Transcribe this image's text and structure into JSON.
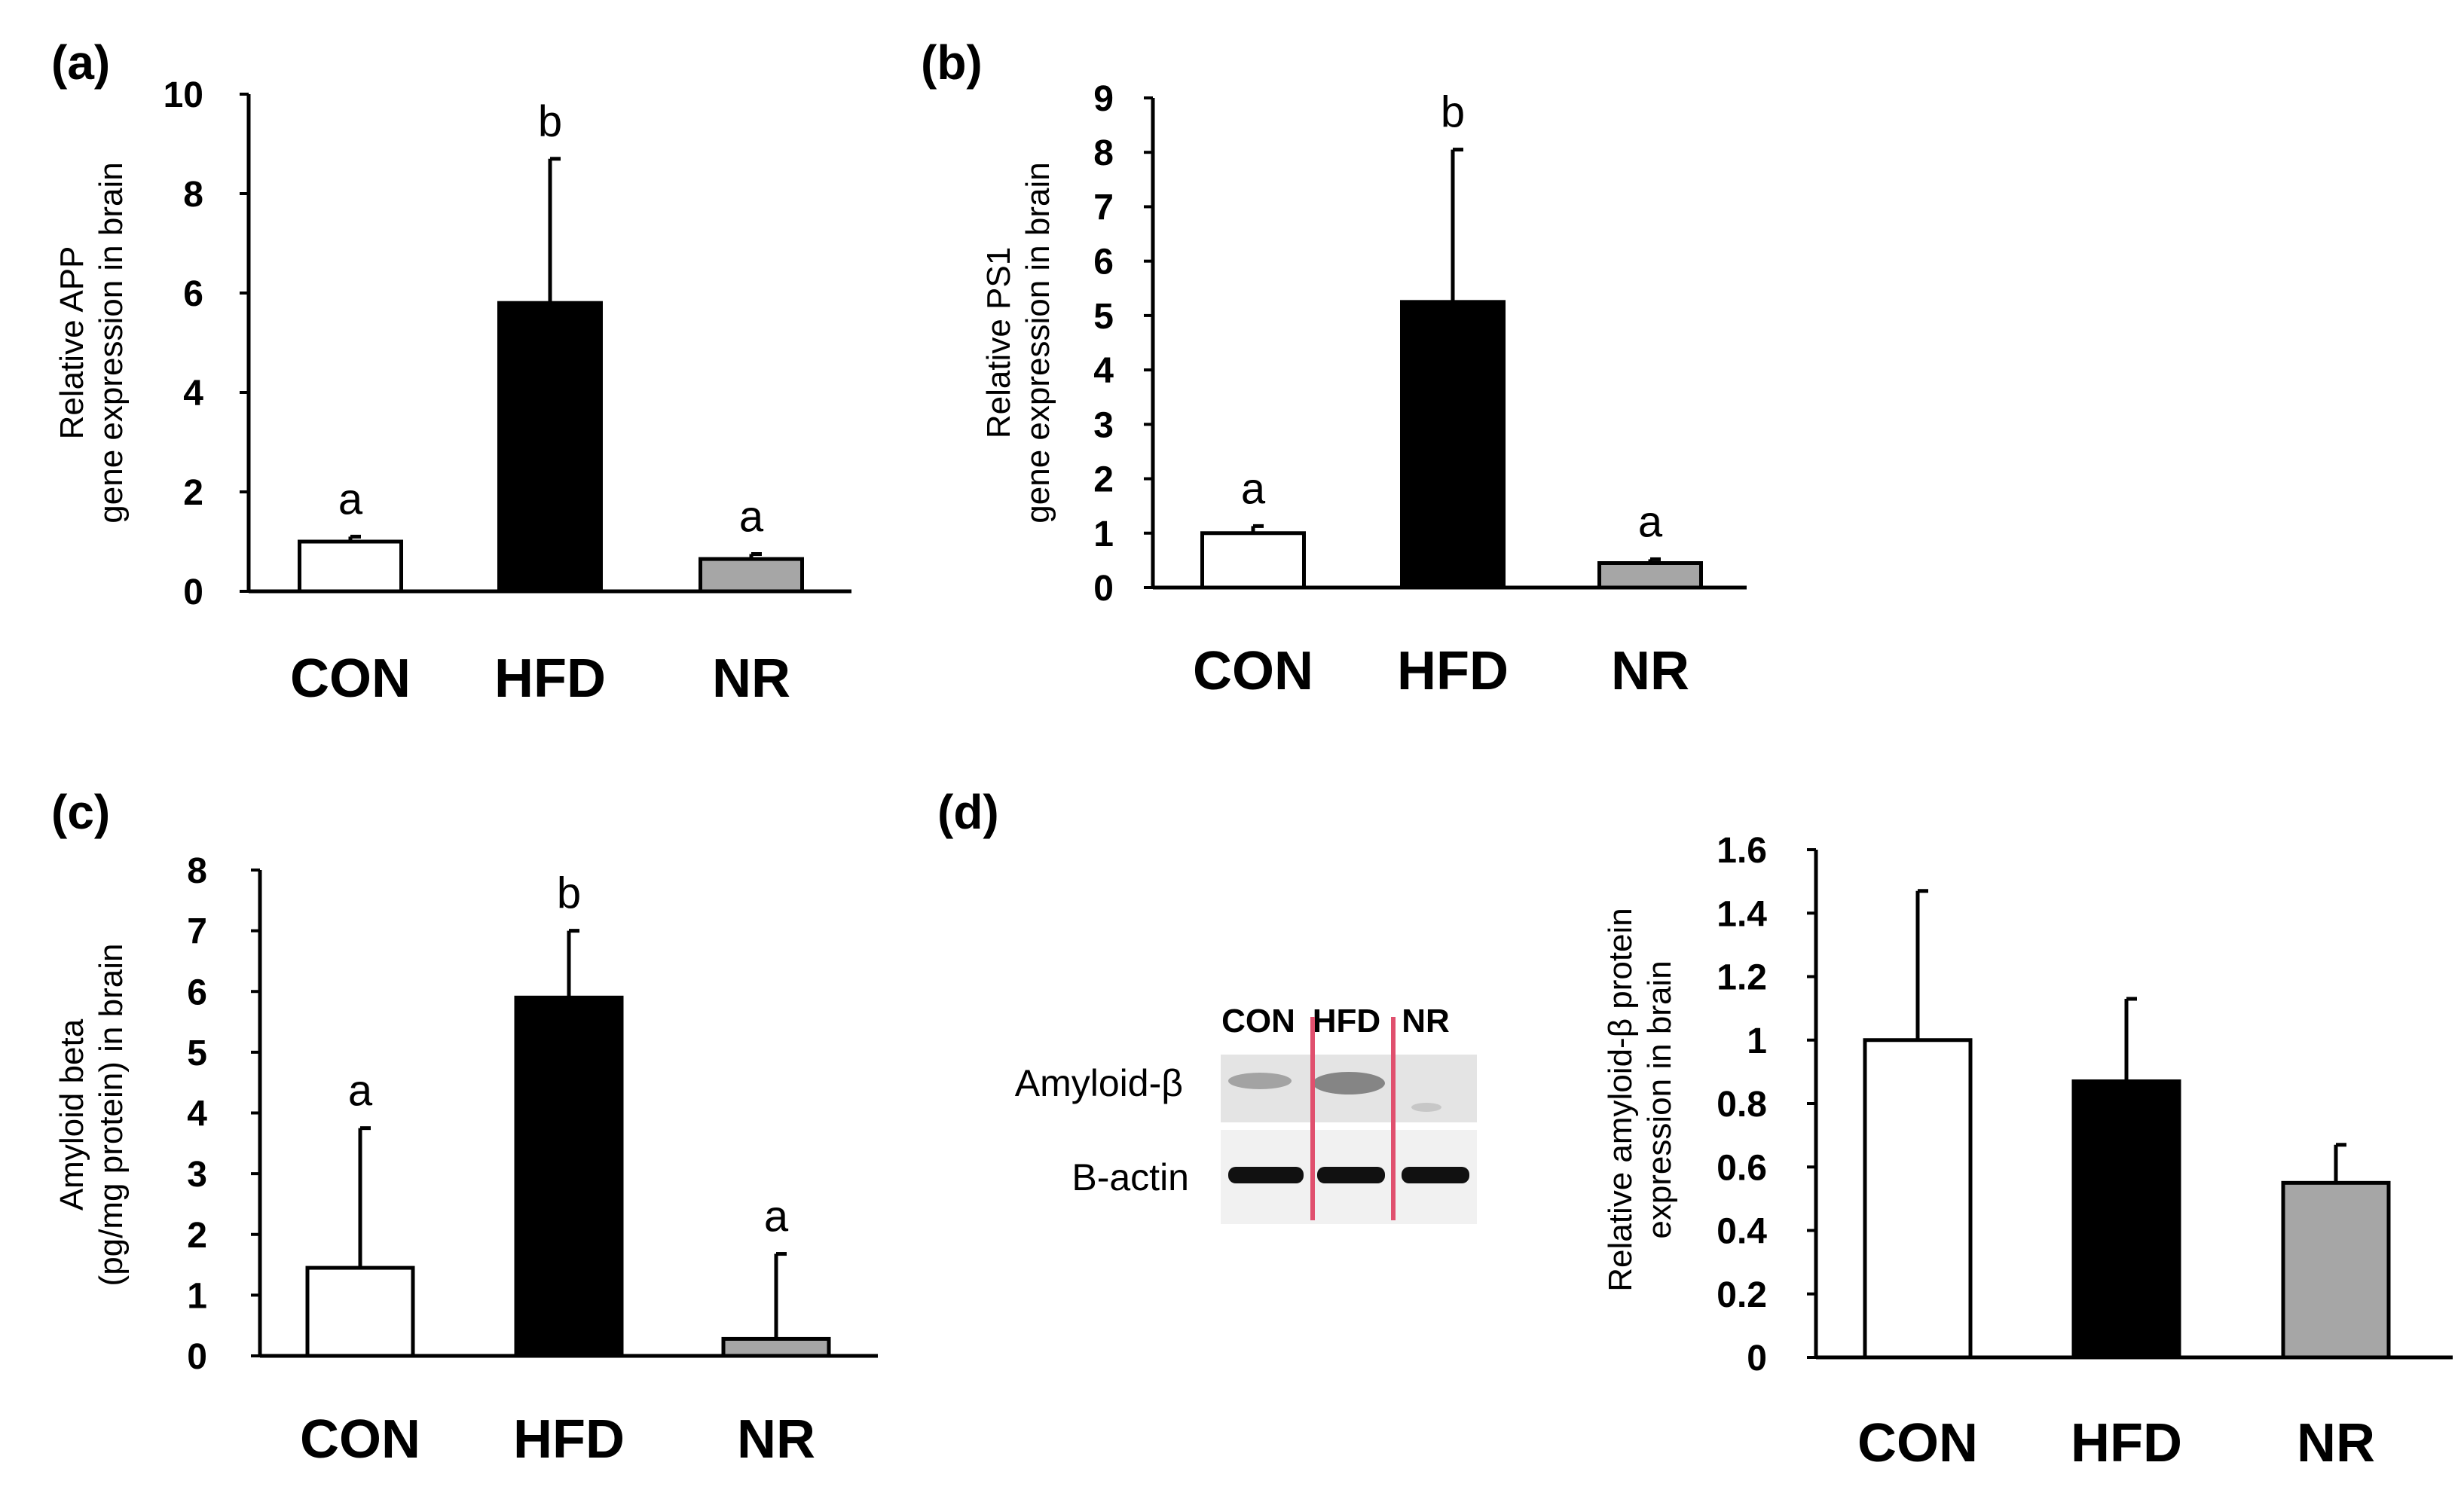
{
  "figure": {
    "blot": {
      "lane_labels": [
        "CON",
        "HFD",
        "NR"
      ],
      "row_labels": [
        "Amyloid-β",
        "B-actin"
      ],
      "divider_color": "#e0506e"
    }
  },
  "chart_data": [
    {
      "panel": "(a)",
      "type": "bar",
      "categories": [
        "CON",
        "HFD",
        "NR"
      ],
      "values": [
        1.0,
        5.8,
        0.65
      ],
      "errors": [
        0.1,
        2.9,
        0.1
      ],
      "significance": [
        "a",
        "b",
        "a"
      ],
      "colors": [
        "#ffffff",
        "#000000",
        "#a6a6a6"
      ],
      "ylabel_lines": [
        "Relative APP",
        "gene expression in brain"
      ],
      "ylim": [
        0,
        10
      ],
      "yticks": [
        0,
        2,
        4,
        6,
        8,
        10
      ],
      "ytick_labels": [
        "0",
        "2",
        "4",
        "6",
        "8",
        "10"
      ]
    },
    {
      "panel": "(b)",
      "type": "bar",
      "categories": [
        "CON",
        "HFD",
        "NR"
      ],
      "values": [
        1.0,
        5.25,
        0.45
      ],
      "errors": [
        0.13,
        2.8,
        0.07
      ],
      "significance": [
        "a",
        "b",
        "a"
      ],
      "colors": [
        "#ffffff",
        "#000000",
        "#a6a6a6"
      ],
      "ylabel_lines": [
        "Relative PS1",
        "gene expression in brain"
      ],
      "ylim": [
        0,
        9
      ],
      "yticks": [
        0,
        1,
        2,
        3,
        4,
        5,
        6,
        7,
        8,
        9
      ],
      "ytick_labels": [
        "0",
        "1",
        "2",
        "3",
        "4",
        "5",
        "6",
        "7",
        "8",
        "9"
      ]
    },
    {
      "panel": "(c)",
      "type": "bar",
      "categories": [
        "CON",
        "HFD",
        "NR"
      ],
      "values": [
        1.45,
        5.9,
        0.28
      ],
      "errors": [
        2.3,
        1.1,
        1.4
      ],
      "significance": [
        "a",
        "b",
        "a"
      ],
      "colors": [
        "#ffffff",
        "#000000",
        "#a6a6a6"
      ],
      "ylabel_lines": [
        "Amyloid beta",
        "(pg/mg protein) in brain"
      ],
      "ylim": [
        0,
        8
      ],
      "yticks": [
        0,
        1,
        2,
        3,
        4,
        5,
        6,
        7,
        8
      ],
      "ytick_labels": [
        "0",
        "1",
        "2",
        "3",
        "4",
        "5",
        "6",
        "7",
        "8"
      ]
    },
    {
      "panel": "(d)",
      "type": "bar",
      "categories": [
        "CON",
        "HFD",
        "NR"
      ],
      "values": [
        1.0,
        0.87,
        0.55
      ],
      "errors": [
        0.47,
        0.26,
        0.12
      ],
      "significance": [
        "",
        "",
        ""
      ],
      "colors": [
        "#ffffff",
        "#000000",
        "#a6a6a6"
      ],
      "ylabel_lines": [
        "Relative amyloid-β protein",
        "expression in brain"
      ],
      "ylim": [
        0,
        1.6
      ],
      "yticks": [
        0,
        0.2,
        0.4,
        0.6,
        0.8,
        1.0,
        1.2,
        1.4,
        1.6
      ],
      "ytick_labels": [
        "0",
        "0.2",
        "0.4",
        "0.6",
        "0.8",
        "1",
        "1.2",
        "1.4",
        "1.6"
      ]
    }
  ]
}
